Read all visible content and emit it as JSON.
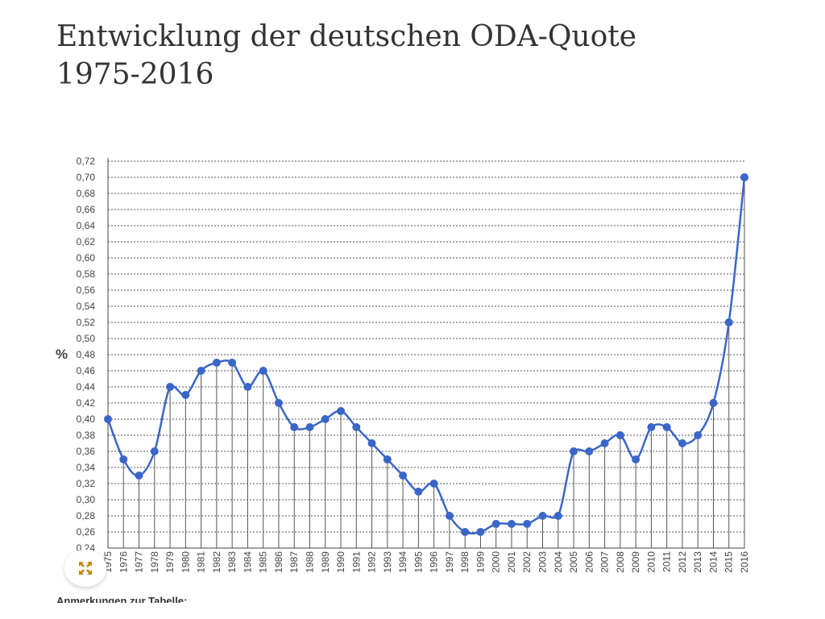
{
  "page": {
    "title_line1": "Entwicklung der deutschen ODA-Quote",
    "title_line2": "1975-2016",
    "footnote_heading": "Anmerkungen zur Tabelle:",
    "expand_icon": "expand-arrows-icon"
  },
  "chart_data": {
    "type": "line",
    "title": "",
    "xlabel": "",
    "ylabel": "%",
    "ylim": [
      0.24,
      0.72
    ],
    "ytick_step": 0.02,
    "grid": true,
    "vertical_drop_lines": true,
    "line_color": "#3a66c8",
    "x": [
      "1975",
      "1976",
      "1977",
      "1978",
      "1979",
      "1980",
      "1981",
      "1982",
      "1983",
      "1984",
      "1985",
      "1986",
      "1987",
      "1988",
      "1989",
      "1990",
      "1991",
      "1992",
      "1993",
      "1994",
      "1995",
      "1996",
      "1997",
      "1998",
      "1999",
      "2000",
      "2001",
      "2002",
      "2003",
      "2004",
      "2005",
      "2006",
      "2007",
      "2008",
      "2009",
      "2010",
      "2011",
      "2012",
      "2013",
      "2014",
      "2015",
      "2016"
    ],
    "series": [
      {
        "values": [
          0.4,
          0.35,
          0.33,
          0.36,
          0.44,
          0.43,
          0.46,
          0.47,
          0.47,
          0.44,
          0.46,
          0.42,
          0.39,
          0.39,
          0.4,
          0.41,
          0.39,
          0.37,
          0.35,
          0.33,
          0.31,
          0.32,
          0.28,
          0.26,
          0.26,
          0.27,
          0.27,
          0.27,
          0.28,
          0.28,
          0.36,
          0.36,
          0.37,
          0.38,
          0.35,
          0.39,
          0.39,
          0.37,
          0.38,
          0.42,
          0.52,
          0.7
        ]
      }
    ]
  }
}
